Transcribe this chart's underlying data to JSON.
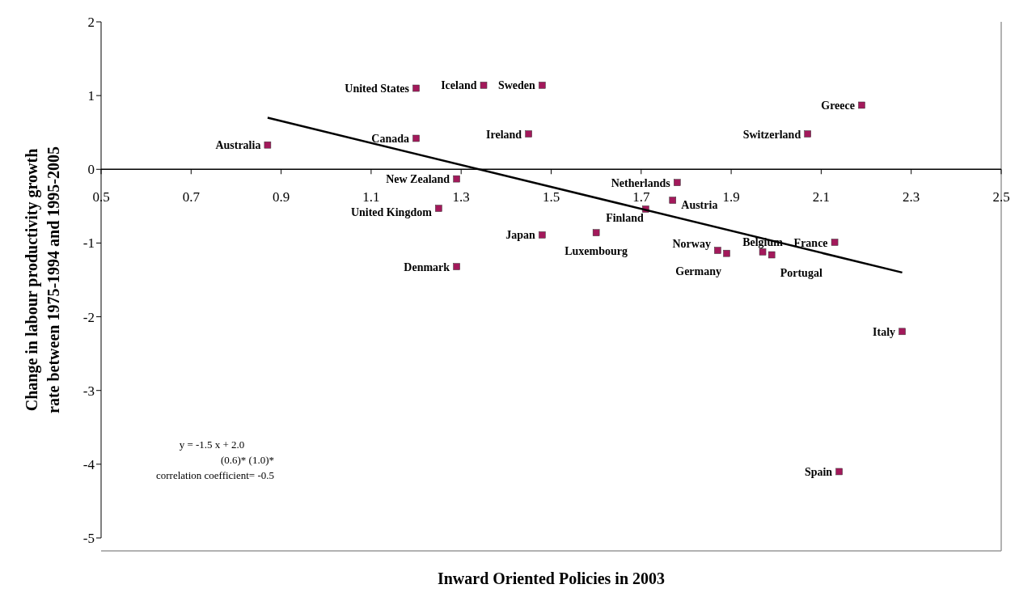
{
  "chart_data": {
    "type": "scatter",
    "xlabel": "Inward Oriented Policies in 2003",
    "ylabel": "Change in labour productivity growth rate between 1975-1994 and 1995-2005",
    "xlim": [
      0.5,
      2.5
    ],
    "xticks": [
      0.5,
      0.7,
      0.9,
      1.1,
      1.3,
      1.5,
      1.7,
      1.9,
      2.1,
      2.3,
      2.5
    ],
    "ylim": [
      -5,
      2
    ],
    "yticks": [
      -5,
      -4,
      -3,
      -2,
      -1,
      0,
      1,
      2
    ],
    "marker": "square",
    "series": [
      {
        "name": "Australia",
        "color": "#a3195b",
        "x": [
          0.87
        ],
        "values": [
          0.33
        ]
      },
      {
        "name": "United States",
        "color": "#a3195b",
        "x": [
          1.2
        ],
        "values": [
          1.1
        ]
      },
      {
        "name": "Iceland",
        "color": "#a3195b",
        "x": [
          1.35
        ],
        "values": [
          1.14
        ]
      },
      {
        "name": "Sweden",
        "color": "#a3195b",
        "x": [
          1.48
        ],
        "values": [
          1.14
        ]
      },
      {
        "name": "Canada",
        "color": "#a3195b",
        "x": [
          1.2
        ],
        "values": [
          0.42
        ]
      },
      {
        "name": "Ireland",
        "color": "#a3195b",
        "x": [
          1.45
        ],
        "values": [
          0.48
        ]
      },
      {
        "name": "New Zealand",
        "color": "#a3195b",
        "x": [
          1.29
        ],
        "values": [
          -0.13
        ]
      },
      {
        "name": "United Kingdom",
        "color": "#a3195b",
        "x": [
          1.25
        ],
        "values": [
          -0.53
        ]
      },
      {
        "name": "Japan",
        "color": "#a3195b",
        "x": [
          1.48
        ],
        "values": [
          -0.89
        ]
      },
      {
        "name": "Denmark",
        "color": "#a3195b",
        "x": [
          1.29
        ],
        "values": [
          -1.32
        ]
      },
      {
        "name": "Luxembourg",
        "color": "#a3195b",
        "x": [
          1.6
        ],
        "values": [
          -0.86
        ]
      },
      {
        "name": "Finland",
        "color": "#a3195b",
        "x": [
          1.71
        ],
        "values": [
          -0.54
        ]
      },
      {
        "name": "Netherlands",
        "color": "#a3195b",
        "x": [
          1.78
        ],
        "values": [
          -0.18
        ]
      },
      {
        "name": "Austria",
        "color": "#a3195b",
        "x": [
          1.77
        ],
        "values": [
          -0.42
        ]
      },
      {
        "name": "Norway",
        "color": "#a3195b",
        "x": [
          1.87
        ],
        "values": [
          -1.1
        ]
      },
      {
        "name": "Germany",
        "color": "#a3195b",
        "x": [
          1.89
        ],
        "values": [
          -1.14
        ]
      },
      {
        "name": "Belgium",
        "color": "#a3195b",
        "x": [
          1.97
        ],
        "values": [
          -1.12
        ]
      },
      {
        "name": "Portugal",
        "color": "#a3195b",
        "x": [
          1.99
        ],
        "values": [
          -1.16
        ]
      },
      {
        "name": "France",
        "color": "#a3195b",
        "x": [
          2.13
        ],
        "values": [
          -0.99
        ]
      },
      {
        "name": "Greece",
        "color": "#a3195b",
        "x": [
          2.19
        ],
        "values": [
          0.87
        ]
      },
      {
        "name": "Switzerland",
        "color": "#a3195b",
        "x": [
          2.07
        ],
        "values": [
          0.48
        ]
      },
      {
        "name": "Italy",
        "color": "#a3195b",
        "x": [
          2.28
        ],
        "values": [
          -2.2
        ]
      },
      {
        "name": "Spain",
        "color": "#a3195b",
        "x": [
          2.14
        ],
        "values": [
          -4.1
        ]
      },
      {
        "type": "line",
        "marker": "none",
        "color": "#000000",
        "x": [
          0.87,
          2.28
        ],
        "values": [
          0.7,
          -1.4
        ]
      }
    ],
    "annotations": [
      "y = -1.5 x + 2.0",
      "(0.6)*  (1.0)*",
      "correlation coefficient= -0.5"
    ]
  }
}
